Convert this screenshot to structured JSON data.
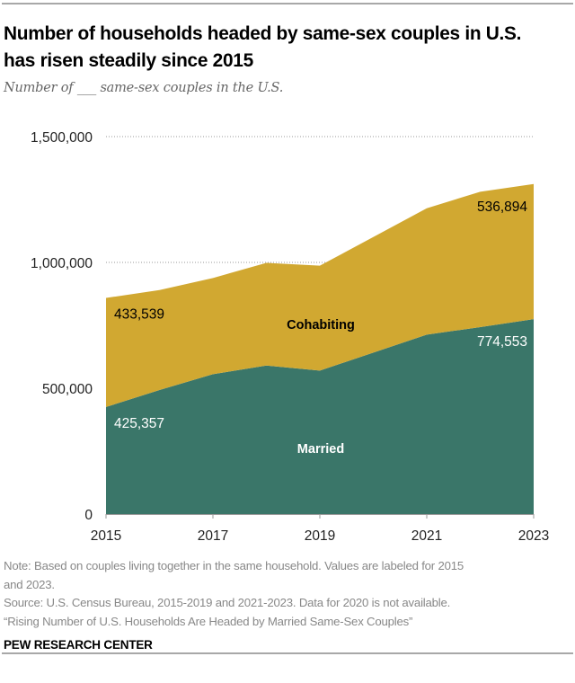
{
  "header": {
    "title": "Number of households headed by same-sex couples in U.S. has risen steadily since 2015",
    "subtitle": "Number of ___ same-sex couples in the U.S."
  },
  "chart_data": {
    "type": "area",
    "stacked": true,
    "title": "Number of households headed by same-sex couples in U.S. has risen steadily since 2015",
    "subtitle": "Number of ___ same-sex couples in the U.S.",
    "x": [
      2015,
      2016,
      2017,
      2018,
      2019,
      2021,
      2022,
      2023
    ],
    "xticks": [
      "2015",
      "2017",
      "2019",
      "2021",
      "2023"
    ],
    "xlim": [
      2015,
      2023
    ],
    "ylim": [
      0,
      1500000
    ],
    "yticks": [
      0,
      500000,
      1000000,
      1500000
    ],
    "ytick_labels": [
      "0",
      "500,000",
      "1,000,000",
      "1,500,000"
    ],
    "grid": "horizontal-dotted",
    "xlabel": "",
    "ylabel": "",
    "series": [
      {
        "name": "Married",
        "color": "#3A7669",
        "label_color": "#ffffff",
        "values": [
          425357,
          493000,
          556000,
          590000,
          570000,
          713000,
          743000,
          774553
        ],
        "value_labels": {
          "2015": "425,357",
          "2023": "774,553"
        }
      },
      {
        "name": "Cohabiting",
        "color": "#D1A831",
        "label_color": "#000000",
        "values": [
          433539,
          397000,
          382000,
          408000,
          417000,
          502000,
          538000,
          536894
        ],
        "value_labels": {
          "2015": "433,539",
          "2023": "536,894"
        }
      }
    ],
    "legend": "inline-labels"
  },
  "footer": {
    "note_line1": "Note: Based on couples living together in the same household. Values are labeled for 2015",
    "note_line2": "and 2023.",
    "source": "Source: U.S. Census Bureau, 2015-2019 and 2021-2023. Data for 2020 is not available.",
    "report": "“Rising Number of U.S. Households Are Headed by Married Same-Sex Couples”",
    "brand": "PEW RESEARCH CENTER"
  }
}
